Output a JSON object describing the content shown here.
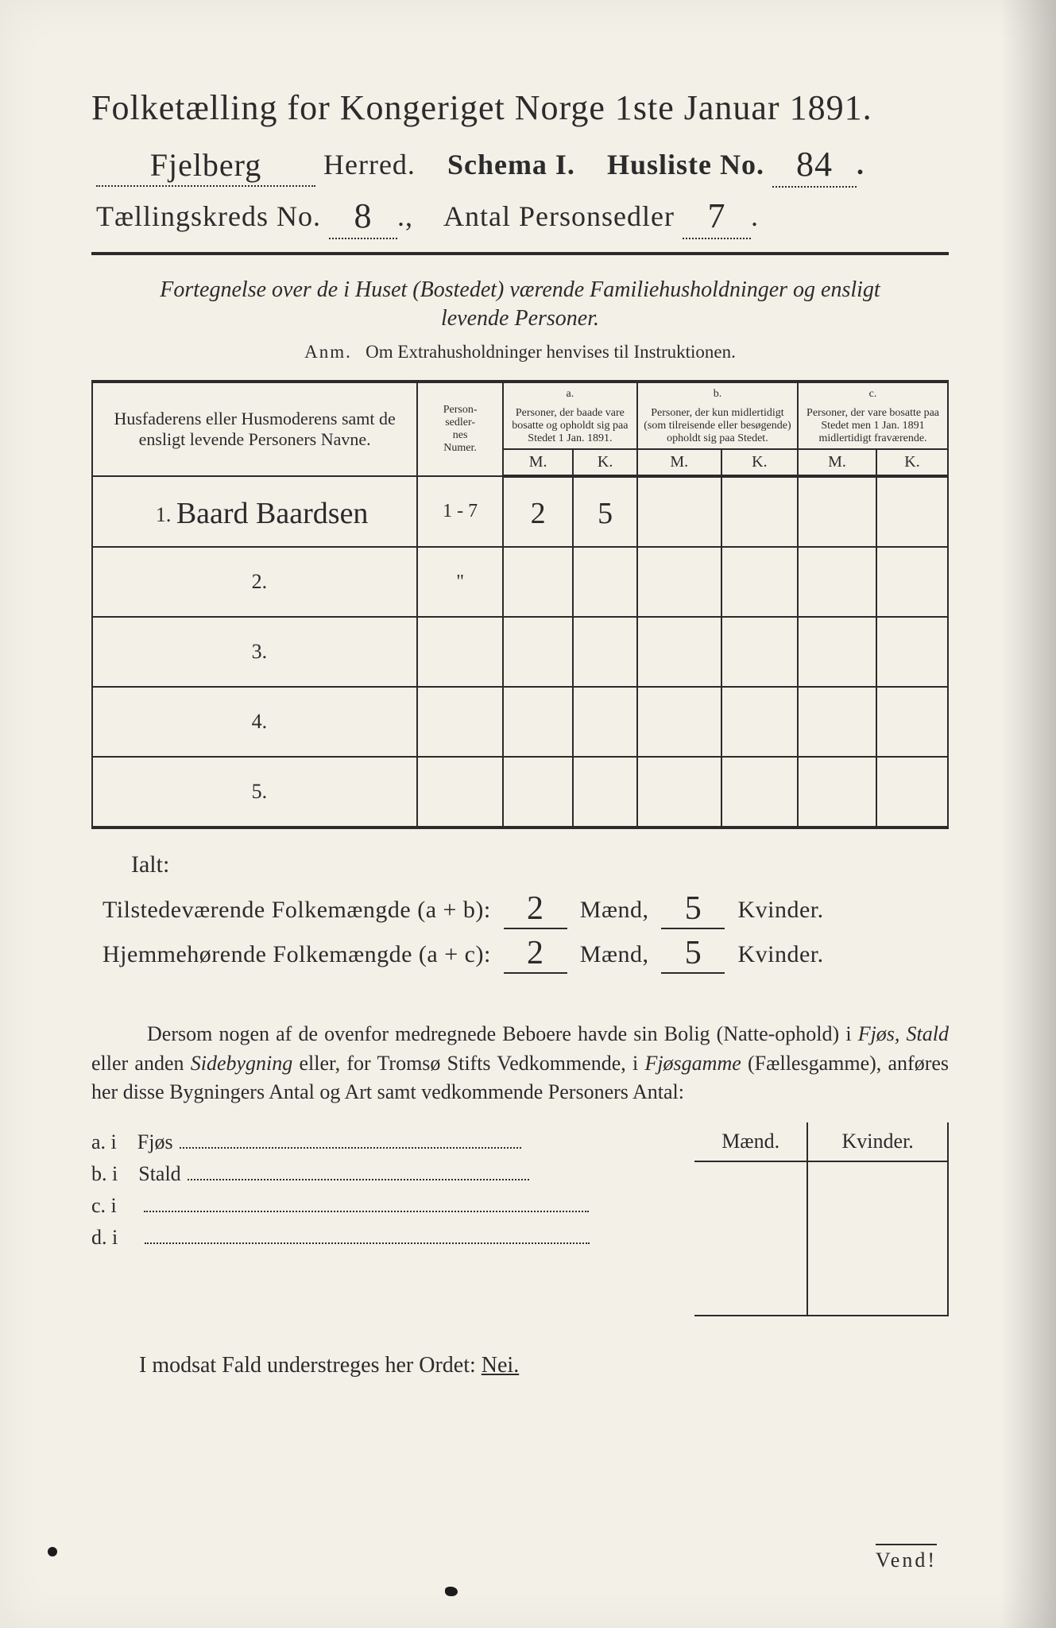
{
  "title": {
    "line1": "Folketælling for Kongeriget Norge 1ste Januar 1891.",
    "herred_value": "Fjelberg",
    "herred_label": "Herred.",
    "schema_label": "Schema I.",
    "husliste_label": "Husliste No.",
    "husliste_value": "84",
    "taellingskreds_label": "Tællingskreds No.",
    "taellingskreds_value": "8",
    "antal_label": "Antal Personsedler",
    "antal_value": "7"
  },
  "subtitle": {
    "line1": "Fortegnelse over de i Huset (Bostedet) værende Familiehusholdninger og ensligt",
    "line2": "levende Personer.",
    "anm_label": "Anm.",
    "anm_text": "Om Extrahusholdninger henvises til Instruktionen."
  },
  "table": {
    "col_name": "Husfaderens eller Husmoderens samt de ensligt levende Personers Navne.",
    "col_num": "Person-\nsedler-\nnes\nNumer.",
    "col_a_label": "a.",
    "col_a": "Personer, der baade vare bosatte og opholdt sig paa Stedet 1 Jan. 1891.",
    "col_b_label": "b.",
    "col_b": "Personer, der kun midlertidigt (som tilreisende eller besøgende) opholdt sig paa Stedet.",
    "col_c_label": "c.",
    "col_c": "Personer, der vare bosatte paa Stedet men 1 Jan. 1891 midlertidigt fraværende.",
    "m": "M.",
    "k": "K.",
    "rows": [
      {
        "n": "1.",
        "name": "Baard Baardsen",
        "num": "1 - 7",
        "a_m": "2",
        "a_k": "5",
        "b_m": "",
        "b_k": "",
        "c_m": "",
        "c_k": ""
      },
      {
        "n": "2.",
        "name": "",
        "num": "\"",
        "a_m": "",
        "a_k": "",
        "b_m": "",
        "b_k": "",
        "c_m": "",
        "c_k": ""
      },
      {
        "n": "3.",
        "name": "",
        "num": "",
        "a_m": "",
        "a_k": "",
        "b_m": "",
        "b_k": "",
        "c_m": "",
        "c_k": ""
      },
      {
        "n": "4.",
        "name": "",
        "num": "",
        "a_m": "",
        "a_k": "",
        "b_m": "",
        "b_k": "",
        "c_m": "",
        "c_k": ""
      },
      {
        "n": "5.",
        "name": "",
        "num": "",
        "a_m": "",
        "a_k": "",
        "b_m": "",
        "b_k": "",
        "c_m": "",
        "c_k": ""
      }
    ]
  },
  "totals": {
    "ialt": "Ialt:",
    "line1_label": "Tilstedeværende Folkemængde (a + b):",
    "line2_label": "Hjemmehørende Folkemængde (a + c):",
    "maend": "Mænd,",
    "kvinder": "Kvinder.",
    "l1_m": "2",
    "l1_k": "5",
    "l2_m": "2",
    "l2_k": "5"
  },
  "para": {
    "text1": "Dersom nogen af de ovenfor medregnede Beboere havde sin Bolig (Natte-ophold) i ",
    "fjos": "Fjøs, Stald",
    "text2": " eller anden ",
    "side": "Sidebygning",
    "text3": " eller, for Tromsø Stifts Vedkommende, i ",
    "fjosgamme": "Fjøsgamme",
    "paren": " (Fællesgamme), anføres her disse Bygningers Antal og Art samt vedkommende Personers Antal:"
  },
  "mini": {
    "maend": "Mænd.",
    "kvinder": "Kvinder.",
    "rows": [
      {
        "label": "a.  i",
        "name": "Fjøs"
      },
      {
        "label": "b.  i",
        "name": "Stald"
      },
      {
        "label": "c.  i",
        "name": ""
      },
      {
        "label": "d.  i",
        "name": ""
      }
    ]
  },
  "closing": {
    "text": "I modsat Fald understreges her Ordet: ",
    "nei": "Nei."
  },
  "vend": "Vend!",
  "colors": {
    "paper": "#f3f0e8",
    "ink": "#2b2b2b",
    "background": "#8a8a8a"
  }
}
